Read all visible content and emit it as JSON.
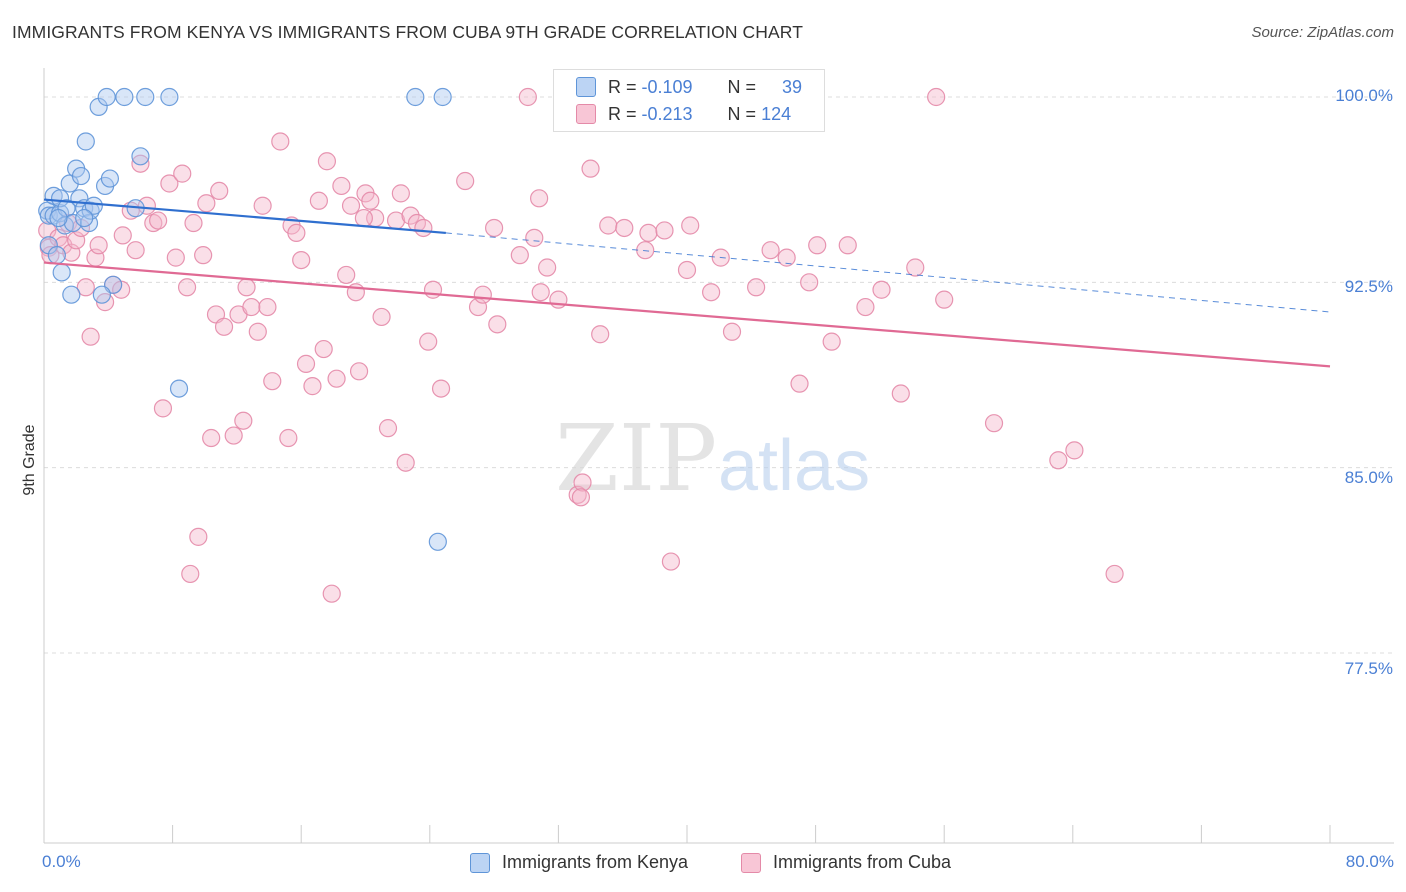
{
  "header": {
    "title": "IMMIGRANTS FROM KENYA VS IMMIGRANTS FROM CUBA 9TH GRADE CORRELATION CHART",
    "source": "Source: ZipAtlas.com"
  },
  "watermark": {
    "zip": "ZIP",
    "atlas": "atlas"
  },
  "legend": {
    "kenya": {
      "r_label": "R =",
      "r_value": "-0.109",
      "n_label": "N =",
      "n_value": "39"
    },
    "cuba": {
      "r_label": "R =",
      "r_value": "-0.213",
      "n_label": "N =",
      "n_value": "124"
    }
  },
  "colors": {
    "kenya_fill": "#aac8f0",
    "kenya_stroke": "#5f95d8",
    "kenya_line": "#2f6fcf",
    "cuba_fill": "#f5b8cc",
    "cuba_stroke": "#e48aa8",
    "cuba_line": "#e06a94",
    "tick_text": "#4a7fd4"
  },
  "chart_data": {
    "type": "scatter",
    "title": "IMMIGRANTS FROM KENYA VS IMMIGRANTS FROM CUBA 9TH GRADE CORRELATION CHART",
    "xlabel": "",
    "ylabel": "9th Grade",
    "xlim": [
      0,
      80
    ],
    "ylim": [
      70,
      101.5
    ],
    "x_tick_labels": [
      "0.0%",
      "80.0%"
    ],
    "y_ticks": [
      100,
      92.5,
      85,
      77.5
    ],
    "y_tick_labels": [
      "100.0%",
      "92.5%",
      "85.0%",
      "77.5%"
    ],
    "grid": true,
    "legend_position": "top-center",
    "series": [
      {
        "name": "Immigrants from Kenya",
        "trend": {
          "x0": 0,
          "y0": 95.85,
          "x1": 25,
          "y1": 94.5,
          "dash_to_x": 80,
          "dash_to_y": 91.3
        },
        "points": [
          [
            0.2,
            95.4
          ],
          [
            0.3,
            95.2
          ],
          [
            0.3,
            94.0
          ],
          [
            0.6,
            96.0
          ],
          [
            0.6,
            95.2
          ],
          [
            0.8,
            93.6
          ],
          [
            1.0,
            95.3
          ],
          [
            1.0,
            95.9
          ],
          [
            1.1,
            92.9
          ],
          [
            1.3,
            94.8
          ],
          [
            1.4,
            95.5
          ],
          [
            1.6,
            96.5
          ],
          [
            1.8,
            94.9
          ],
          [
            2.0,
            97.1
          ],
          [
            2.2,
            95.9
          ],
          [
            2.3,
            96.8
          ],
          [
            2.5,
            95.5
          ],
          [
            2.6,
            98.2
          ],
          [
            2.8,
            94.9
          ],
          [
            2.9,
            95.4
          ],
          [
            3.1,
            95.6
          ],
          [
            3.4,
            99.6
          ],
          [
            3.8,
            96.4
          ],
          [
            3.9,
            100.0
          ],
          [
            4.1,
            96.7
          ],
          [
            4.3,
            92.4
          ],
          [
            5.0,
            100.0
          ],
          [
            5.7,
            95.5
          ],
          [
            6.0,
            97.6
          ],
          [
            6.3,
            100.0
          ],
          [
            7.8,
            100.0
          ],
          [
            8.4,
            88.2
          ],
          [
            23.1,
            100.0
          ],
          [
            24.8,
            100.0
          ],
          [
            24.5,
            82.0
          ],
          [
            2.5,
            95.1
          ],
          [
            1.7,
            92.0
          ],
          [
            3.6,
            92.0
          ],
          [
            0.9,
            95.1
          ]
        ]
      },
      {
        "name": "Immigrants from Cuba",
        "trend": {
          "x0": 0,
          "y0": 93.3,
          "x1": 80,
          "y1": 89.1
        },
        "points": [
          [
            0.2,
            94.6
          ],
          [
            0.3,
            93.9
          ],
          [
            0.4,
            93.6
          ],
          [
            0.9,
            94.3
          ],
          [
            1.2,
            94.0
          ],
          [
            1.5,
            94.9
          ],
          [
            1.7,
            93.7
          ],
          [
            2.0,
            94.2
          ],
          [
            2.3,
            94.7
          ],
          [
            2.6,
            92.3
          ],
          [
            2.9,
            90.3
          ],
          [
            3.2,
            93.5
          ],
          [
            3.4,
            94.0
          ],
          [
            3.8,
            91.7
          ],
          [
            4.3,
            92.4
          ],
          [
            4.9,
            94.4
          ],
          [
            4.8,
            92.2
          ],
          [
            5.4,
            95.4
          ],
          [
            5.7,
            93.8
          ],
          [
            6.0,
            97.3
          ],
          [
            6.4,
            95.6
          ],
          [
            6.8,
            94.9
          ],
          [
            7.1,
            95.0
          ],
          [
            7.4,
            87.4
          ],
          [
            7.8,
            96.5
          ],
          [
            8.2,
            93.5
          ],
          [
            8.6,
            96.9
          ],
          [
            8.9,
            92.3
          ],
          [
            9.1,
            80.7
          ],
          [
            9.3,
            94.9
          ],
          [
            9.6,
            82.2
          ],
          [
            10.1,
            95.7
          ],
          [
            10.4,
            86.2
          ],
          [
            10.7,
            91.2
          ],
          [
            10.9,
            96.2
          ],
          [
            11.2,
            90.7
          ],
          [
            11.8,
            86.3
          ],
          [
            12.1,
            91.2
          ],
          [
            12.4,
            86.9
          ],
          [
            12.6,
            92.3
          ],
          [
            12.9,
            91.5
          ],
          [
            13.3,
            90.5
          ],
          [
            13.6,
            95.6
          ],
          [
            13.9,
            91.5
          ],
          [
            14.2,
            88.5
          ],
          [
            14.7,
            98.2
          ],
          [
            15.2,
            86.2
          ],
          [
            15.4,
            94.8
          ],
          [
            15.7,
            94.5
          ],
          [
            16.0,
            93.4
          ],
          [
            16.3,
            89.2
          ],
          [
            16.7,
            88.3
          ],
          [
            17.1,
            95.8
          ],
          [
            17.4,
            89.8
          ],
          [
            17.6,
            97.4
          ],
          [
            17.9,
            79.9
          ],
          [
            18.2,
            88.6
          ],
          [
            18.5,
            96.4
          ],
          [
            18.8,
            92.8
          ],
          [
            19.1,
            95.6
          ],
          [
            19.4,
            92.1
          ],
          [
            19.6,
            88.9
          ],
          [
            20.0,
            96.1
          ],
          [
            20.3,
            95.8
          ],
          [
            20.6,
            95.1
          ],
          [
            21.0,
            91.1
          ],
          [
            21.4,
            86.6
          ],
          [
            21.9,
            95.0
          ],
          [
            22.2,
            96.1
          ],
          [
            22.5,
            85.2
          ],
          [
            22.8,
            95.2
          ],
          [
            23.2,
            94.9
          ],
          [
            23.6,
            94.7
          ],
          [
            23.9,
            90.1
          ],
          [
            24.2,
            92.2
          ],
          [
            24.7,
            88.2
          ],
          [
            26.2,
            96.6
          ],
          [
            27.0,
            91.5
          ],
          [
            27.3,
            92.0
          ],
          [
            28.0,
            94.7
          ],
          [
            28.2,
            90.8
          ],
          [
            29.6,
            93.6
          ],
          [
            30.1,
            100.0
          ],
          [
            30.5,
            94.3
          ],
          [
            30.8,
            95.9
          ],
          [
            30.9,
            92.1
          ],
          [
            31.3,
            93.1
          ],
          [
            32.0,
            91.8
          ],
          [
            33.2,
            83.9
          ],
          [
            33.5,
            84.4
          ],
          [
            34.0,
            97.1
          ],
          [
            34.6,
            90.4
          ],
          [
            35.1,
            94.8
          ],
          [
            36.1,
            94.7
          ],
          [
            37.4,
            93.8
          ],
          [
            37.6,
            94.5
          ],
          [
            38.6,
            94.6
          ],
          [
            39.0,
            81.2
          ],
          [
            40.0,
            93.0
          ],
          [
            40.2,
            94.8
          ],
          [
            41.5,
            92.1
          ],
          [
            42.1,
            93.5
          ],
          [
            42.8,
            90.5
          ],
          [
            44.3,
            92.3
          ],
          [
            45.2,
            93.8
          ],
          [
            46.2,
            93.5
          ],
          [
            47.0,
            88.4
          ],
          [
            47.6,
            92.5
          ],
          [
            48.1,
            94.0
          ],
          [
            49.0,
            90.1
          ],
          [
            50.0,
            94.0
          ],
          [
            51.1,
            91.5
          ],
          [
            52.1,
            92.2
          ],
          [
            53.3,
            88.0
          ],
          [
            54.2,
            93.1
          ],
          [
            55.5,
            100.0
          ],
          [
            56.0,
            91.8
          ],
          [
            59.1,
            86.8
          ],
          [
            63.1,
            85.3
          ],
          [
            64.1,
            85.7
          ],
          [
            66.6,
            80.7
          ],
          [
            33.4,
            83.8
          ],
          [
            19.9,
            95.1
          ],
          [
            9.9,
            93.6
          ]
        ]
      }
    ]
  },
  "bottom_legend": {
    "kenya_label": "Immigrants from Kenya",
    "cuba_label": "Immigrants from Cuba"
  }
}
